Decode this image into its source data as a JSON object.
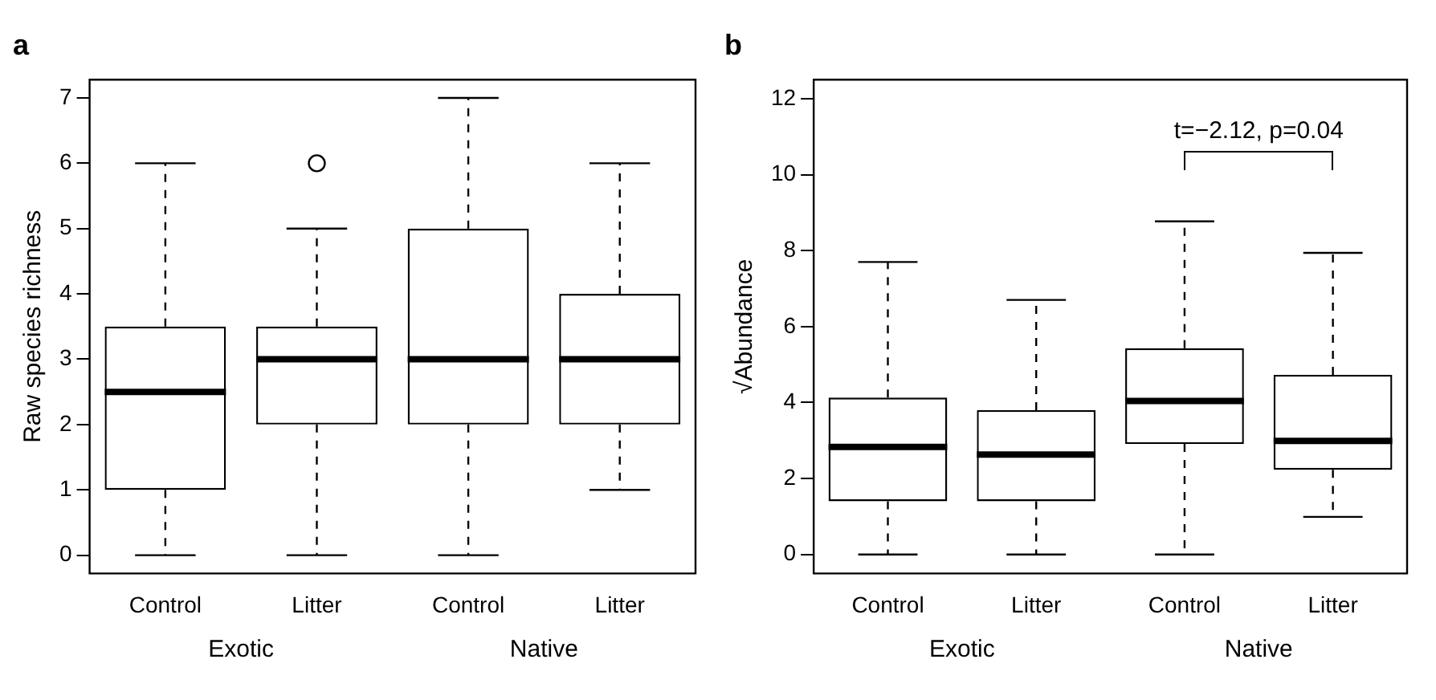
{
  "chart_data": [
    {
      "type": "box",
      "title": "a",
      "ylabel": "Raw species richness",
      "categories": [
        "Control",
        "Litter",
        "Control",
        "Litter"
      ],
      "boxes": [
        {
          "low": 0,
          "q1": 1,
          "median": 2.5,
          "q3": 3.5,
          "high": 6
        },
        {
          "low": 0,
          "q1": 2,
          "median": 3,
          "q3": 3.5,
          "high": 5,
          "outliers": [
            6
          ]
        },
        {
          "low": 0,
          "q1": 2,
          "median": 3,
          "q3": 5,
          "high": 7
        },
        {
          "low": 1,
          "q1": 2,
          "median": 3,
          "q3": 4,
          "high": 6
        }
      ],
      "ylim": [
        -0.28,
        7.28
      ],
      "yticks": [
        0,
        1,
        2,
        3,
        4,
        5,
        6,
        7
      ],
      "annotations": [
        "Exotic",
        "Native"
      ]
    },
    {
      "type": "box",
      "title": "b",
      "ylabel": "√Abundance",
      "categories": [
        "Control",
        "Litter",
        "Control",
        "Litter"
      ],
      "boxes": [
        {
          "low": 0,
          "q1": 1.4,
          "median": 2.83,
          "q3": 4.13,
          "high": 7.7
        },
        {
          "low": 0,
          "q1": 1.4,
          "median": 2.63,
          "q3": 3.8,
          "high": 6.7
        },
        {
          "low": 0,
          "q1": 2.91,
          "median": 4.04,
          "q3": 5.43,
          "high": 8.77
        },
        {
          "low": 0.99,
          "q1": 2.23,
          "median": 2.99,
          "q3": 4.73,
          "high": 7.94
        }
      ],
      "ylim": [
        -0.5,
        12.5
      ],
      "yticks": [
        0,
        2,
        4,
        6,
        8,
        10,
        12
      ],
      "annotations": [
        "Exotic",
        "Native",
        "t=−2.12, p=0.04"
      ]
    }
  ]
}
